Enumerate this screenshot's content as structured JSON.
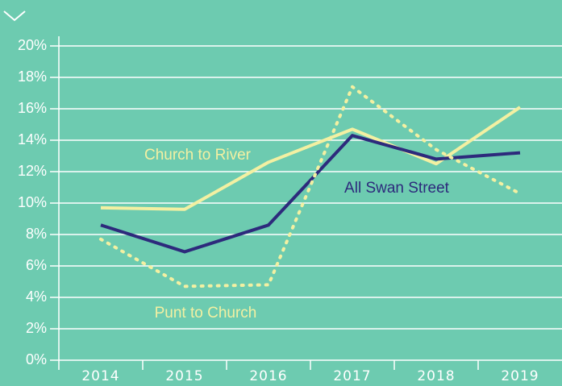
{
  "chart_data": {
    "type": "line",
    "categories": [
      "2014",
      "2015",
      "2016",
      "2017",
      "2018",
      "2019"
    ],
    "series": [
      {
        "name": "Church to River",
        "color": "#f3f0a2",
        "dash": false,
        "values": [
          9.7,
          9.6,
          12.6,
          14.7,
          12.5,
          16.1
        ]
      },
      {
        "name": "All Swan Street",
        "color": "#2d2a7c",
        "dash": false,
        "values": [
          8.6,
          6.9,
          8.6,
          14.3,
          12.8,
          13.2
        ]
      },
      {
        "name": "Punt to Church",
        "color": "#f3f0a2",
        "dash": true,
        "values": [
          7.7,
          4.7,
          4.8,
          17.4,
          13.4,
          10.6
        ]
      }
    ],
    "ylim": [
      0,
      20
    ],
    "yticks": [
      {
        "value": 0,
        "label": "0%"
      },
      {
        "value": 2,
        "label": "2%"
      },
      {
        "value": 4,
        "label": "4%"
      },
      {
        "value": 6,
        "label": "6%"
      },
      {
        "value": 8,
        "label": "8%"
      },
      {
        "value": 10,
        "label": "10%"
      },
      {
        "value": 12,
        "label": "12%"
      },
      {
        "value": 14,
        "label": "14%"
      },
      {
        "value": 16,
        "label": "16%"
      },
      {
        "value": 18,
        "label": "18%"
      },
      {
        "value": 20,
        "label": "20%"
      }
    ],
    "grid": true
  }
}
